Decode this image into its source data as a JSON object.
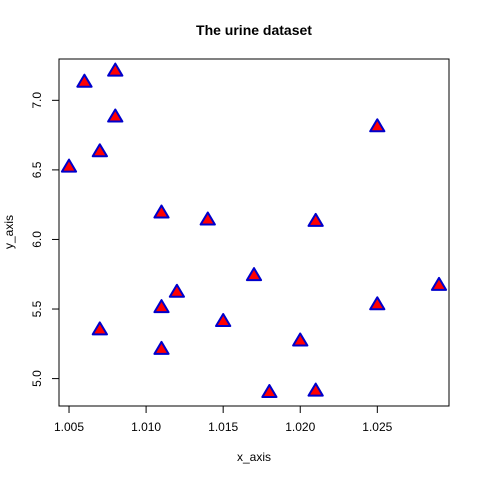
{
  "chart_data": {
    "type": "scatter",
    "title": "The urine dataset",
    "xlabel": "x_axis",
    "ylabel": "y_axis",
    "xlim": [
      1.00435,
      1.02965
    ],
    "ylim": [
      4.803,
      7.297
    ],
    "xticks": [
      1.005,
      1.01,
      1.015,
      1.02,
      1.025
    ],
    "xtick_labels": [
      "1.005",
      "1.010",
      "1.015",
      "1.020",
      "1.025"
    ],
    "yticks": [
      5.0,
      5.5,
      6.0,
      6.5,
      7.0
    ],
    "ytick_labels": [
      "5.0",
      "5.5",
      "6.0",
      "6.5",
      "7.0"
    ],
    "grid": false,
    "marker": "triangle",
    "marker_fill": "#ff0000",
    "marker_edge": "#0000cc",
    "points": [
      {
        "x": 1.005,
        "y": 6.52
      },
      {
        "x": 1.006,
        "y": 7.13
      },
      {
        "x": 1.007,
        "y": 6.63
      },
      {
        "x": 1.007,
        "y": 5.35
      },
      {
        "x": 1.008,
        "y": 7.21
      },
      {
        "x": 1.008,
        "y": 6.88
      },
      {
        "x": 1.011,
        "y": 6.19
      },
      {
        "x": 1.011,
        "y": 5.51
      },
      {
        "x": 1.011,
        "y": 5.21
      },
      {
        "x": 1.012,
        "y": 5.62
      },
      {
        "x": 1.014,
        "y": 6.14
      },
      {
        "x": 1.015,
        "y": 5.41
      },
      {
        "x": 1.017,
        "y": 5.74
      },
      {
        "x": 1.018,
        "y": 4.9
      },
      {
        "x": 1.02,
        "y": 5.27
      },
      {
        "x": 1.021,
        "y": 6.13
      },
      {
        "x": 1.021,
        "y": 4.91
      },
      {
        "x": 1.025,
        "y": 6.81
      },
      {
        "x": 1.025,
        "y": 5.53
      },
      {
        "x": 1.029,
        "y": 5.67
      }
    ]
  }
}
